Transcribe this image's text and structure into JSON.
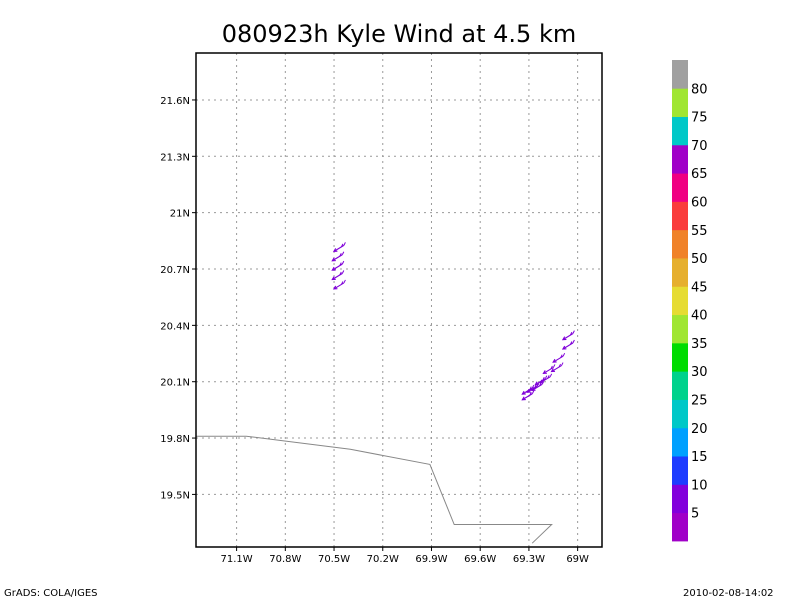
{
  "chart_data": {
    "type": "map",
    "title": "080923h Kyle Wind at 4.5 km",
    "x_range": [
      -71.35,
      -68.85
    ],
    "y_range": [
      19.22,
      21.85
    ],
    "x_ticks": [
      {
        "value": -71.1,
        "label": "71.1W"
      },
      {
        "value": -70.8,
        "label": "70.8W"
      },
      {
        "value": -70.5,
        "label": "70.5W"
      },
      {
        "value": -70.2,
        "label": "70.2W"
      },
      {
        "value": -69.9,
        "label": "69.9W"
      },
      {
        "value": -69.6,
        "label": "69.6W"
      },
      {
        "value": -69.3,
        "label": "69.3W"
      },
      {
        "value": -69.0,
        "label": "69W"
      }
    ],
    "y_ticks": [
      {
        "value": 19.5,
        "label": "19.5N"
      },
      {
        "value": 19.8,
        "label": "19.8N"
      },
      {
        "value": 20.1,
        "label": "20.1N"
      },
      {
        "value": 20.4,
        "label": "20.4N"
      },
      {
        "value": 20.7,
        "label": "20.7N"
      },
      {
        "value": 21.0,
        "label": "21N"
      },
      {
        "value": 21.3,
        "label": "21.3N"
      },
      {
        "value": 21.6,
        "label": "21.6N"
      }
    ],
    "grid": true,
    "coastline": [
      [
        -71.35,
        19.81
      ],
      [
        -71.04,
        19.81
      ],
      [
        -70.4,
        19.74
      ],
      [
        -69.91,
        19.66
      ],
      [
        -69.76,
        19.34
      ],
      [
        -69.16,
        19.34
      ],
      [
        -69.28,
        19.24
      ]
    ],
    "wind_barbs": [
      {
        "lon": -70.47,
        "lat": 20.81,
        "color": "#7f00d9"
      },
      {
        "lon": -70.48,
        "lat": 20.76,
        "color": "#7f00d9"
      },
      {
        "lon": -70.48,
        "lat": 20.71,
        "color": "#7f00d9"
      },
      {
        "lon": -70.48,
        "lat": 20.66,
        "color": "#7f00d9"
      },
      {
        "lon": -70.47,
        "lat": 20.61,
        "color": "#7f00d9"
      },
      {
        "lon": -69.06,
        "lat": 20.34,
        "color": "#7f00d9"
      },
      {
        "lon": -69.06,
        "lat": 20.29,
        "color": "#7f00d9"
      },
      {
        "lon": -69.12,
        "lat": 20.22,
        "color": "#7f00d9"
      },
      {
        "lon": -69.13,
        "lat": 20.17,
        "color": "#7f00d9"
      },
      {
        "lon": -69.18,
        "lat": 20.16,
        "color": "#7f00d9"
      },
      {
        "lon": -69.2,
        "lat": 20.11,
        "color": "#7f00d9"
      },
      {
        "lon": -69.23,
        "lat": 20.1,
        "color": "#7f00d9"
      },
      {
        "lon": -69.25,
        "lat": 20.07,
        "color": "#7f00d9"
      },
      {
        "lon": -69.28,
        "lat": 20.06,
        "color": "#7f00d9"
      },
      {
        "lon": -69.31,
        "lat": 20.05,
        "color": "#7f00d9"
      },
      {
        "lon": -69.31,
        "lat": 20.02,
        "color": "#7f00d9"
      }
    ],
    "colorbar": {
      "levels": [
        "5",
        "10",
        "15",
        "20",
        "25",
        "30",
        "35",
        "40",
        "45",
        "50",
        "55",
        "60",
        "65",
        "70",
        "75",
        "80"
      ],
      "colors": [
        "#a000c8",
        "#8200dc",
        "#1e3cff",
        "#00a0ff",
        "#00c8c8",
        "#00d28c",
        "#00dc00",
        "#a0e632",
        "#e6dc32",
        "#e6af2d",
        "#f08228",
        "#fa3c3c",
        "#f00082",
        "#a000c8",
        "#00c8c8",
        "#a0e632",
        "#a0a0a0"
      ]
    }
  },
  "footer": {
    "left": "GrADS: COLA/IGES",
    "right": "2010-02-08-14:02"
  }
}
